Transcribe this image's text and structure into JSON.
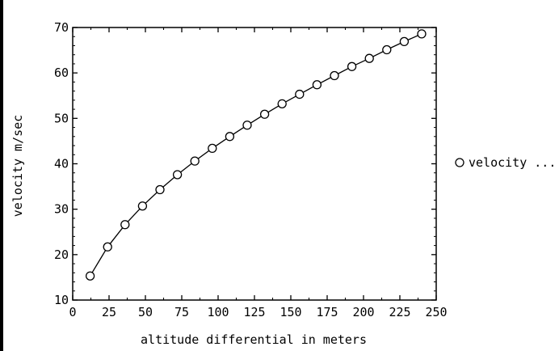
{
  "chart_data": {
    "type": "scatter",
    "connected": true,
    "xlabel": "altitude differential in meters",
    "ylabel": "velocity m/sec",
    "xlim": [
      0,
      250
    ],
    "ylim": [
      10,
      70
    ],
    "xticks": [
      0,
      25,
      50,
      75,
      100,
      125,
      150,
      175,
      200,
      225,
      250
    ],
    "yticks": [
      10,
      20,
      30,
      40,
      50,
      60,
      70
    ],
    "grid": false,
    "legend_position": "right",
    "marker": "open-circle",
    "series": [
      {
        "name": "velocity ...",
        "x": [
          12,
          24,
          36,
          48,
          60,
          72,
          84,
          96,
          108,
          120,
          132,
          144,
          156,
          168,
          180,
          192,
          204,
          216,
          228,
          240
        ],
        "y": [
          15.3,
          21.7,
          26.6,
          30.7,
          34.3,
          37.6,
          40.6,
          43.4,
          46.0,
          48.5,
          50.9,
          53.2,
          55.3,
          57.4,
          59.4,
          61.4,
          63.2,
          65.1,
          66.9,
          68.6
        ]
      }
    ]
  }
}
